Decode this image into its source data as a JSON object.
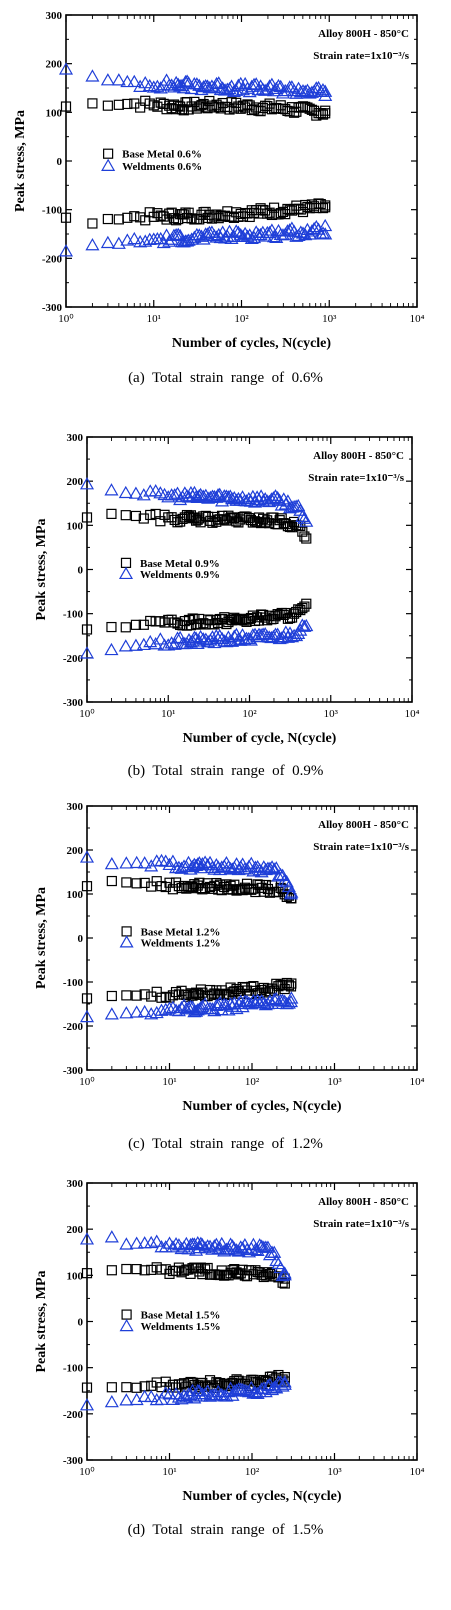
{
  "chart_data": [
    {
      "type": "scatter",
      "caption": "(a)  Total  strain  range  of  0.6%",
      "title": "Alloy 800H - 850°C",
      "subtitle": "Strain rate=1x10⁻³/s",
      "xlabel": "Number of cycles, N(cycle)",
      "ylabel": "Peak stress, MPa",
      "xscale": "log",
      "xlim": [
        1,
        10000
      ],
      "ylim": [
        -300,
        300
      ],
      "xticks": [
        1,
        10,
        100,
        1000,
        10000
      ],
      "xtick_labels": [
        "10⁰",
        "10¹",
        "10²",
        "10³",
        "10⁴"
      ],
      "yticks": [
        -300,
        -200,
        -100,
        0,
        100,
        200,
        300
      ],
      "legend_position": "middle-left",
      "series": [
        {
          "name": "Base Metal 0.6%",
          "marker": "square",
          "color": "#000000",
          "n_max": 900,
          "tension": [
            [
              1,
              112
            ],
            [
              2,
              118
            ],
            [
              3,
              116
            ],
            [
              4,
              117
            ],
            [
              6,
              118
            ],
            [
              10,
              116
            ],
            [
              20,
              112
            ],
            [
              50,
              115
            ],
            [
              100,
              112
            ],
            [
              200,
              110
            ],
            [
              300,
              108
            ],
            [
              500,
              104
            ],
            [
              700,
              102
            ],
            [
              900,
              100
            ]
          ],
          "compression": [
            [
              1,
              -118
            ],
            [
              2,
              -127
            ],
            [
              3,
              -122
            ],
            [
              4,
              -117
            ],
            [
              6,
              -115
            ],
            [
              10,
              -114
            ],
            [
              20,
              -113
            ],
            [
              50,
              -110
            ],
            [
              100,
              -107
            ],
            [
              200,
              -104
            ],
            [
              300,
              -101
            ],
            [
              500,
              -98
            ],
            [
              700,
              -96
            ],
            [
              900,
              -95
            ]
          ]
        },
        {
          "name": "Weldments 0.6%",
          "marker": "triangle",
          "color": "#1f3fd8",
          "n_max": 900,
          "tension": [
            [
              1,
              190
            ],
            [
              2,
              172
            ],
            [
              3,
              165
            ],
            [
              5,
              162
            ],
            [
              10,
              158
            ],
            [
              20,
              156
            ],
            [
              50,
              153
            ],
            [
              100,
              150
            ],
            [
              200,
              148
            ],
            [
              400,
              146
            ],
            [
              700,
              143
            ],
            [
              900,
              140
            ]
          ],
          "compression": [
            [
              1,
              -185
            ],
            [
              2,
              -175
            ],
            [
              3,
              -170
            ],
            [
              5,
              -166
            ],
            [
              10,
              -162
            ],
            [
              20,
              -159
            ],
            [
              50,
              -155
            ],
            [
              100,
              -152
            ],
            [
              200,
              -150
            ],
            [
              400,
              -147
            ],
            [
              700,
              -145
            ],
            [
              900,
              -142
            ]
          ]
        }
      ]
    },
    {
      "type": "scatter",
      "caption": "(b)  Total  strain  range  of  0.9%",
      "title": "Alloy 800H - 850°C",
      "subtitle": "Strain rate=1x10⁻³/s",
      "xlabel": "Number of cycle, N(cycle)",
      "ylabel": "Peak stress, MPa",
      "xscale": "log",
      "xlim": [
        1,
        10000
      ],
      "ylim": [
        -300,
        300
      ],
      "xticks": [
        1,
        10,
        100,
        1000,
        10000
      ],
      "xtick_labels": [
        "10⁰",
        "10¹",
        "10²",
        "10³",
        "10⁴"
      ],
      "yticks": [
        -300,
        -200,
        -100,
        0,
        100,
        200,
        300
      ],
      "legend_position": "middle-left",
      "series": [
        {
          "name": "Base Metal 0.9%",
          "marker": "square",
          "color": "#000000",
          "n_max": 500,
          "tension": [
            [
              1,
              118
            ],
            [
              2,
              128
            ],
            [
              3,
              122
            ],
            [
              5,
              118
            ],
            [
              10,
              116
            ],
            [
              20,
              114
            ],
            [
              50,
              113
            ],
            [
              100,
              112
            ],
            [
              200,
              110
            ],
            [
              300,
              105
            ],
            [
              400,
              95
            ],
            [
              450,
              85
            ],
            [
              500,
              70
            ]
          ],
          "compression": [
            [
              1,
              -133
            ],
            [
              2,
              -130
            ],
            [
              3,
              -128
            ],
            [
              5,
              -125
            ],
            [
              10,
              -122
            ],
            [
              20,
              -118
            ],
            [
              50,
              -115
            ],
            [
              100,
              -112
            ],
            [
              200,
              -108
            ],
            [
              300,
              -104
            ],
            [
              400,
              -98
            ],
            [
              500,
              -85
            ]
          ]
        },
        {
          "name": "Weldments 0.9%",
          "marker": "triangle",
          "color": "#1f3fd8",
          "n_max": 500,
          "tension": [
            [
              1,
              195
            ],
            [
              2,
              180
            ],
            [
              3,
              175
            ],
            [
              5,
              170
            ],
            [
              10,
              167
            ],
            [
              20,
              165
            ],
            [
              50,
              163
            ],
            [
              100,
              160
            ],
            [
              200,
              158
            ],
            [
              300,
              150
            ],
            [
              400,
              135
            ],
            [
              450,
              120
            ],
            [
              500,
              100
            ]
          ],
          "compression": [
            [
              1,
              -190
            ],
            [
              2,
              -180
            ],
            [
              3,
              -174
            ],
            [
              5,
              -170
            ],
            [
              10,
              -166
            ],
            [
              20,
              -162
            ],
            [
              50,
              -158
            ],
            [
              100,
              -155
            ],
            [
              200,
              -152
            ],
            [
              300,
              -148
            ],
            [
              400,
              -140
            ],
            [
              500,
              -130
            ]
          ]
        }
      ]
    },
    {
      "type": "scatter",
      "caption": "(c)  Total  strain  range  of  1.2%",
      "title": "Alloy 800H - 850°C",
      "subtitle": "Strain rate=1x10⁻³/s",
      "xlabel": "Number of cycles, N(cycle)",
      "ylabel": "Peak stress, MPa",
      "xscale": "log",
      "xlim": [
        1,
        10000
      ],
      "ylim": [
        -300,
        300
      ],
      "xticks": [
        1,
        10,
        100,
        1000,
        10000
      ],
      "xtick_labels": [
        "10⁰",
        "10¹",
        "10²",
        "10³",
        "10⁴"
      ],
      "yticks": [
        -300,
        -200,
        -100,
        0,
        100,
        200,
        300
      ],
      "legend_position": "middle-left",
      "series": [
        {
          "name": "Base Metal 1.2%",
          "marker": "square",
          "color": "#000000",
          "n_max": 300,
          "tension": [
            [
              1,
              118
            ],
            [
              2,
              128
            ],
            [
              3,
              128
            ],
            [
              5,
              124
            ],
            [
              10,
              120
            ],
            [
              20,
              118
            ],
            [
              50,
              116
            ],
            [
              100,
              114
            ],
            [
              200,
              110
            ],
            [
              250,
              100
            ],
            [
              300,
              85
            ]
          ],
          "compression": [
            [
              1,
              -135
            ],
            [
              2,
              -133
            ],
            [
              3,
              -131
            ],
            [
              5,
              -129
            ],
            [
              10,
              -127
            ],
            [
              20,
              -125
            ],
            [
              50,
              -122
            ],
            [
              100,
              -118
            ],
            [
              200,
              -113
            ],
            [
              250,
              -108
            ],
            [
              300,
              -103
            ]
          ]
        },
        {
          "name": "Weldments 1.2%",
          "marker": "triangle",
          "color": "#1f3fd8",
          "n_max": 300,
          "tension": [
            [
              1,
              185
            ],
            [
              2,
              165
            ],
            [
              3,
              168
            ],
            [
              5,
              168
            ],
            [
              10,
              166
            ],
            [
              20,
              164
            ],
            [
              50,
              162
            ],
            [
              100,
              160
            ],
            [
              200,
              150
            ],
            [
              250,
              130
            ],
            [
              300,
              100
            ]
          ],
          "compression": [
            [
              1,
              -178
            ],
            [
              2,
              -172
            ],
            [
              3,
              -172
            ],
            [
              5,
              -168
            ],
            [
              10,
              -164
            ],
            [
              20,
              -160
            ],
            [
              50,
              -156
            ],
            [
              100,
              -152
            ],
            [
              200,
              -146
            ],
            [
              300,
              -140
            ]
          ]
        }
      ]
    },
    {
      "type": "scatter",
      "caption": "(d)  Total  strain  range  of  1.5%",
      "title": "Alloy 800H - 850°C",
      "subtitle": "Strain rate=1x10⁻³/s",
      "xlabel": "Number of cycles, N(cycle)",
      "ylabel": "Peak stress, MPa",
      "xscale": "log",
      "xlim": [
        1,
        10000
      ],
      "ylim": [
        -300,
        300
      ],
      "xticks": [
        1,
        10,
        100,
        1000,
        10000
      ],
      "xtick_labels": [
        "10⁰",
        "10¹",
        "10²",
        "10³",
        "10⁴"
      ],
      "yticks": [
        -300,
        -200,
        -100,
        0,
        100,
        200,
        300
      ],
      "legend_position": "middle-left",
      "series": [
        {
          "name": "Base Metal 1.5%",
          "marker": "square",
          "color": "#000000",
          "n_max": 250,
          "tension": [
            [
              1,
              105
            ],
            [
              2,
              112
            ],
            [
              3,
              112
            ],
            [
              5,
              112
            ],
            [
              10,
              112
            ],
            [
              20,
              110
            ],
            [
              50,
              108
            ],
            [
              100,
              106
            ],
            [
              150,
              104
            ],
            [
              200,
              98
            ],
            [
              250,
              85
            ]
          ],
          "compression": [
            [
              1,
              -142
            ],
            [
              2,
              -142
            ],
            [
              3,
              -142
            ],
            [
              5,
              -140
            ],
            [
              10,
              -139
            ],
            [
              20,
              -137
            ],
            [
              50,
              -134
            ],
            [
              100,
              -130
            ],
            [
              150,
              -128
            ],
            [
              200,
              -125
            ],
            [
              250,
              -122
            ]
          ]
        },
        {
          "name": "Weldments 1.5%",
          "marker": "triangle",
          "color": "#1f3fd8",
          "n_max": 250,
          "tension": [
            [
              1,
              180
            ],
            [
              2,
              182
            ],
            [
              3,
              168
            ],
            [
              5,
              170
            ],
            [
              10,
              165
            ],
            [
              20,
              162
            ],
            [
              50,
              160
            ],
            [
              100,
              158
            ],
            [
              150,
              155
            ],
            [
              200,
              135
            ],
            [
              250,
              95
            ]
          ],
          "compression": [
            [
              1,
              -180
            ],
            [
              2,
              -172
            ],
            [
              3,
              -170
            ],
            [
              5,
              -166
            ],
            [
              10,
              -162
            ],
            [
              20,
              -158
            ],
            [
              50,
              -154
            ],
            [
              100,
              -150
            ],
            [
              150,
              -145
            ],
            [
              200,
              -140
            ],
            [
              250,
              -135
            ]
          ]
        }
      ]
    }
  ]
}
